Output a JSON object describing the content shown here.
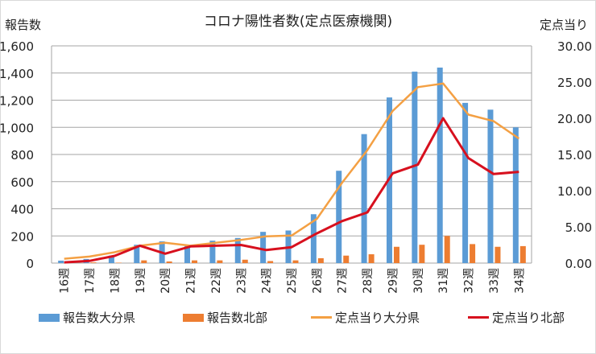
{
  "chart_data": {
    "type": "bar",
    "title": "コロナ陽性者数(定点医療機関)",
    "ylabel": "報告数",
    "y2label": "定点当り",
    "xlabel": "",
    "ylim": [
      0,
      1600
    ],
    "y2lim": [
      0,
      30
    ],
    "yticks": [
      "0",
      "200",
      "400",
      "600",
      "800",
      "1,000",
      "1,200",
      "1,400",
      "1,600"
    ],
    "y2ticks": [
      "0.00",
      "5.00",
      "10.00",
      "15.00",
      "20.00",
      "25.00",
      "30.00"
    ],
    "grid": true,
    "legend_position": "bottom",
    "categories": [
      "16週",
      "17週",
      "18週",
      "19週",
      "20週",
      "21週",
      "22週",
      "23週",
      "24週",
      "25週",
      "26週",
      "27週",
      "28週",
      "29週",
      "30週",
      "31週",
      "32週",
      "33週",
      "34週"
    ],
    "series": [
      {
        "name": "報告数大分県",
        "type": "bar",
        "axis": "left",
        "color": "#5b9bd5",
        "values": [
          18,
          30,
          55,
          135,
          160,
          125,
          165,
          185,
          230,
          240,
          360,
          680,
          950,
          1220,
          1410,
          1440,
          1180,
          1130,
          1000
        ]
      },
      {
        "name": "報告数北部",
        "type": "bar",
        "axis": "left",
        "color": "#ed7d31",
        "values": [
          2,
          5,
          3,
          20,
          12,
          20,
          20,
          25,
          15,
          20,
          36,
          55,
          65,
          120,
          135,
          200,
          140,
          120,
          125
        ]
      },
      {
        "name": "定点当り大分県",
        "type": "line",
        "axis": "right",
        "color": "#f4a043",
        "values": [
          0.6,
          0.9,
          1.5,
          2.4,
          2.8,
          2.4,
          2.8,
          3.2,
          3.7,
          3.8,
          6.1,
          11.1,
          15.6,
          21.0,
          24.3,
          24.8,
          20.5,
          19.6,
          17.2
        ]
      },
      {
        "name": "定点当り北部",
        "type": "line",
        "axis": "right",
        "color": "#d7101e",
        "values": [
          0.1,
          0.3,
          1.0,
          2.4,
          1.3,
          2.3,
          2.4,
          2.5,
          1.8,
          2.2,
          4.1,
          5.8,
          7.0,
          12.4,
          13.6,
          20.0,
          14.5,
          12.3,
          12.6
        ]
      }
    ]
  }
}
